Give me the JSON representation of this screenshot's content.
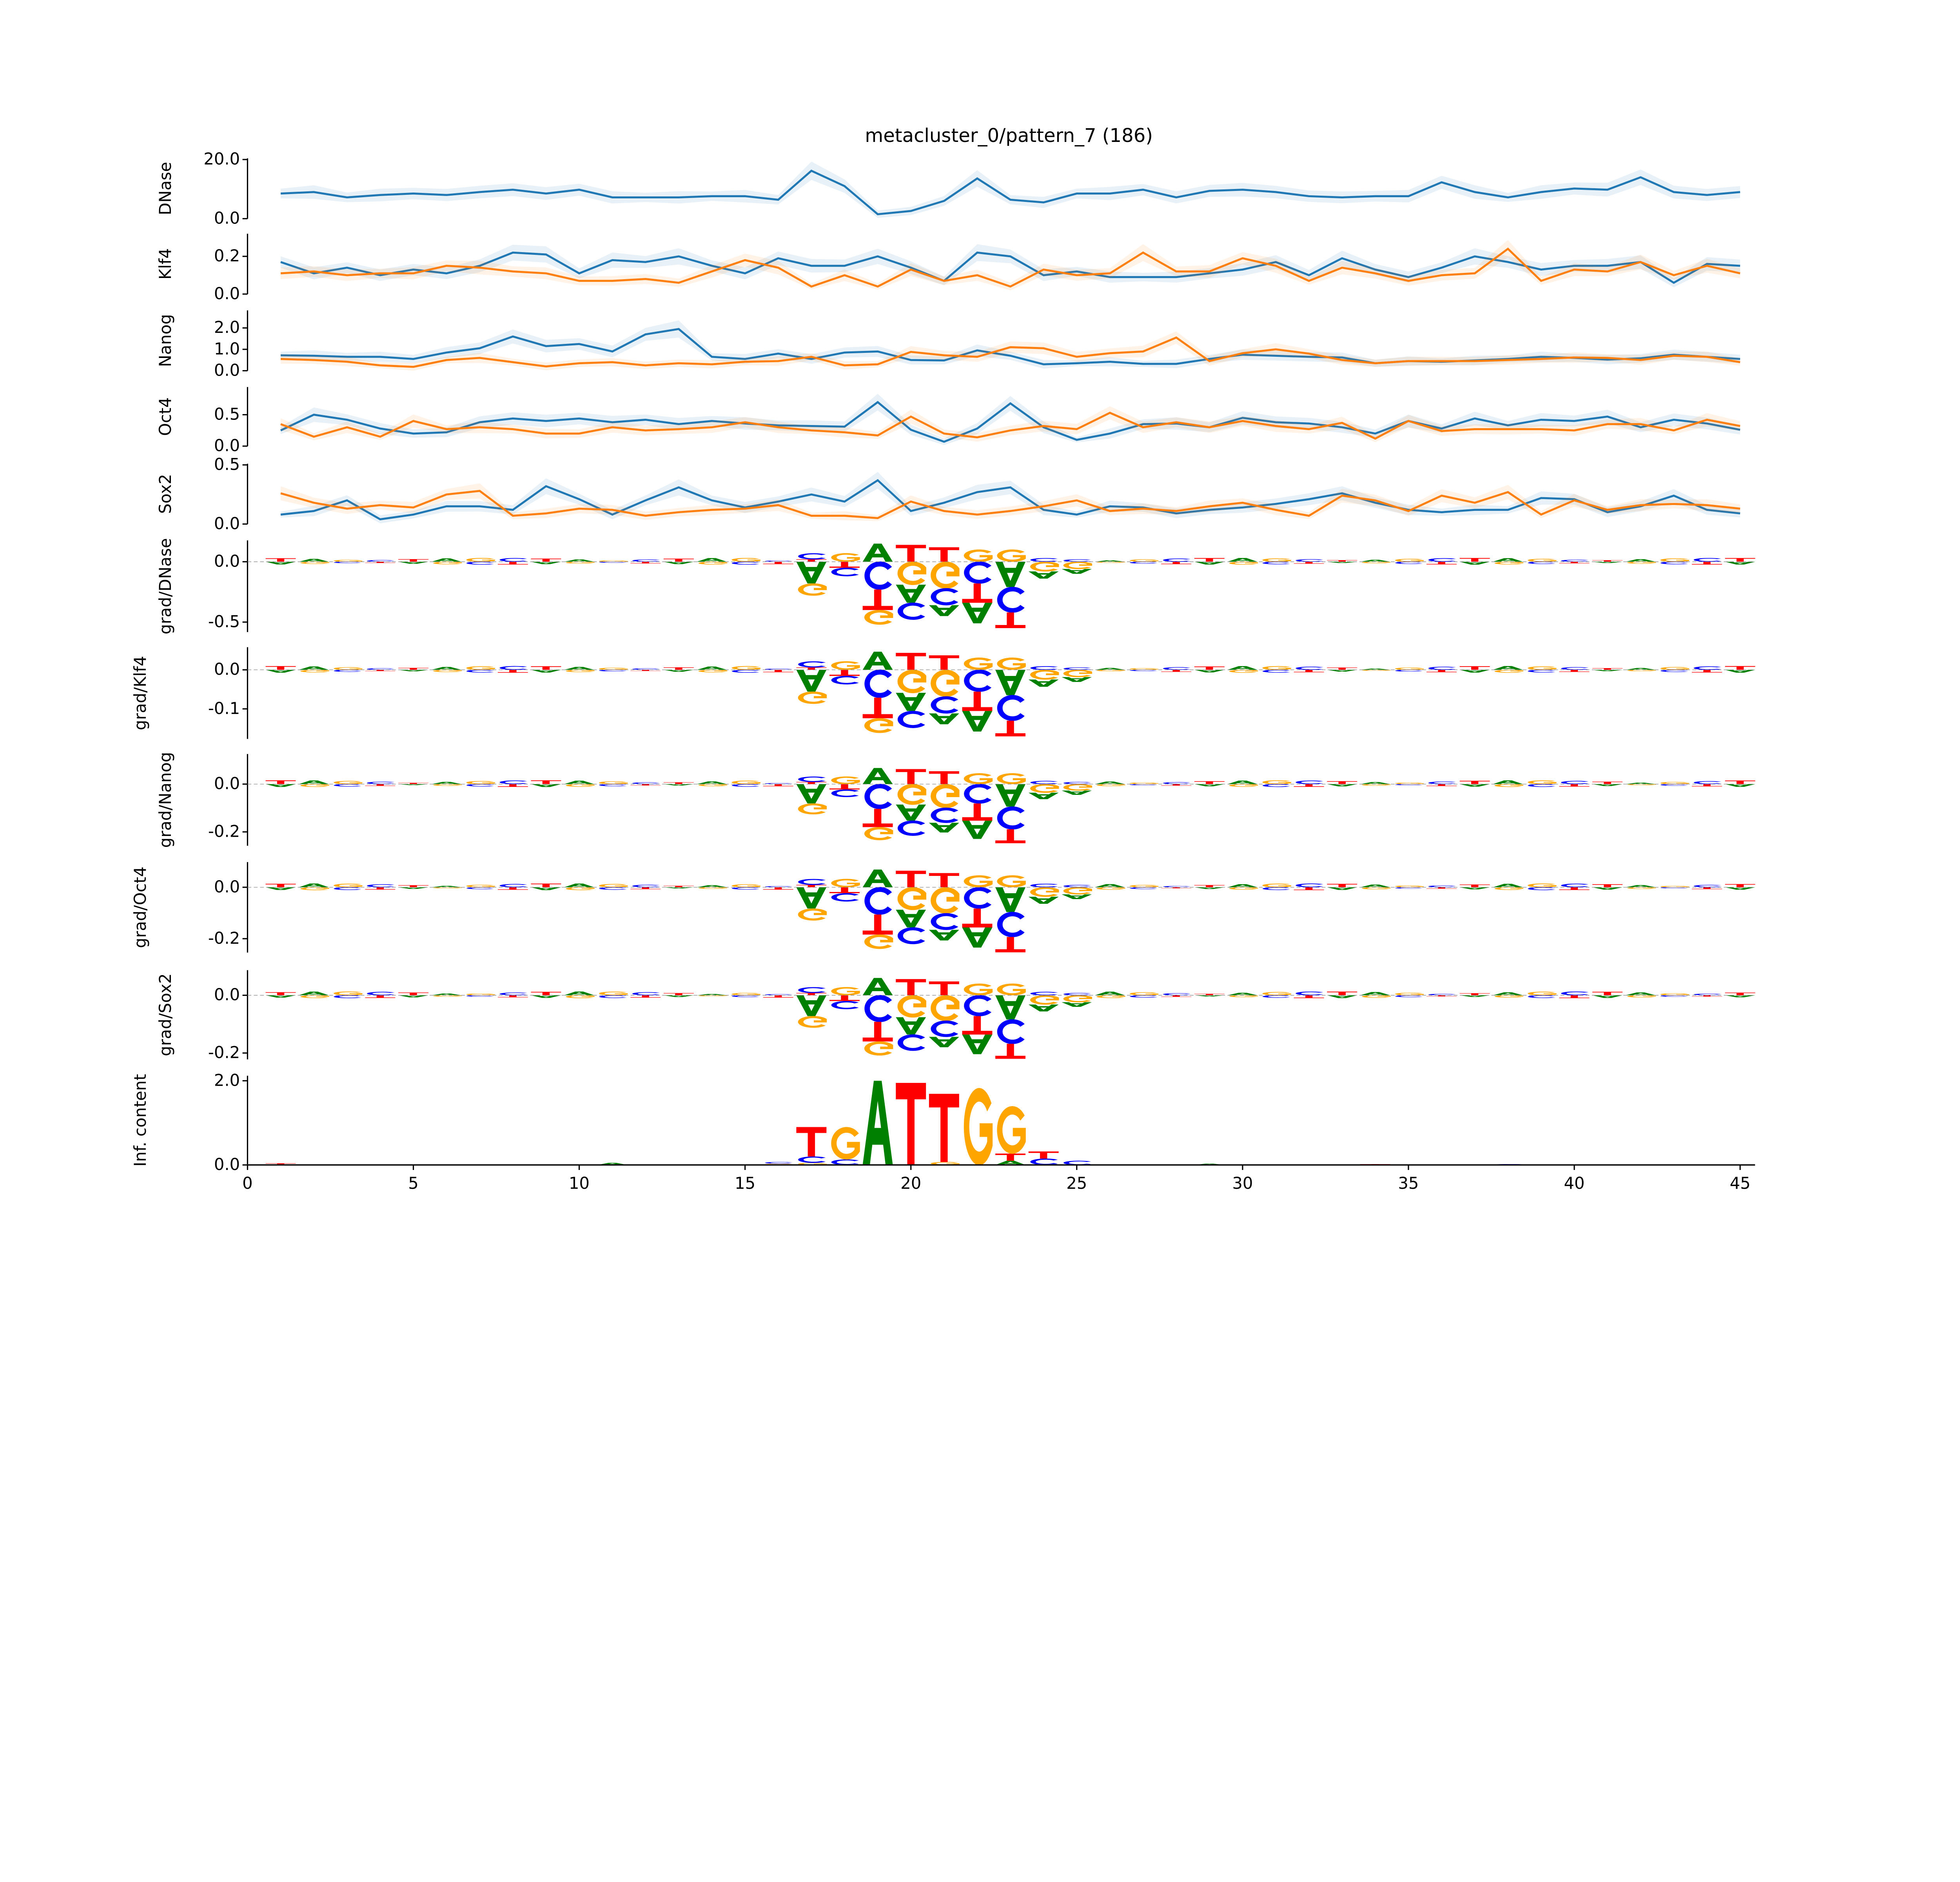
{
  "chart_data": {
    "type": "line",
    "title": "metacluster_0/pattern_7 (186)",
    "xlim": [
      0,
      45.45
    ],
    "xticks": [
      0,
      5,
      10,
      15,
      20,
      25,
      30,
      35,
      40,
      45
    ],
    "xtick_labels": [
      "0",
      "5",
      "10",
      "15",
      "20",
      "25",
      "30",
      "35",
      "40",
      "45"
    ],
    "letter_colors": {
      "A": "#008000",
      "C": "#0000ff",
      "G": "#ffa500",
      "T": "#ff0000"
    },
    "series_colors": [
      "#1f77b4",
      "#ff7f0e"
    ],
    "motif_stacks": [
      {
        "x": 16,
        "pos": [
          [
            "C",
            0.01
          ]
        ],
        "neg": [
          [
            "T",
            -0.02
          ]
        ]
      },
      {
        "x": 17,
        "pos": [
          [
            "T",
            0.02
          ],
          [
            "C",
            0.05
          ]
        ],
        "neg": [
          [
            "A",
            -0.18
          ],
          [
            "G",
            -0.1
          ]
        ]
      },
      {
        "x": 18,
        "pos": [
          [
            "G",
            0.07
          ]
        ],
        "neg": [
          [
            "T",
            -0.05
          ],
          [
            "C",
            -0.07
          ]
        ]
      },
      {
        "x": 19,
        "pos": [
          [
            "A",
            0.15
          ]
        ],
        "neg": [
          [
            "C",
            -0.23
          ],
          [
            "T",
            -0.17
          ],
          [
            "G",
            -0.12
          ]
        ]
      },
      {
        "x": 20,
        "pos": [
          [
            "T",
            0.14
          ]
        ],
        "neg": [
          [
            "G",
            -0.19
          ],
          [
            "A",
            -0.15
          ],
          [
            "C",
            -0.14
          ]
        ]
      },
      {
        "x": 21,
        "pos": [
          [
            "T",
            0.12
          ]
        ],
        "neg": [
          [
            "G",
            -0.22
          ],
          [
            "C",
            -0.14
          ],
          [
            "A",
            -0.09
          ]
        ]
      },
      {
        "x": 22,
        "pos": [
          [
            "G",
            0.1
          ]
        ],
        "neg": [
          [
            "C",
            -0.18
          ],
          [
            "T",
            -0.16
          ],
          [
            "A",
            -0.17
          ]
        ]
      },
      {
        "x": 23,
        "pos": [
          [
            "G",
            0.1
          ]
        ],
        "neg": [
          [
            "A",
            -0.21
          ],
          [
            "C",
            -0.21
          ],
          [
            "T",
            -0.13
          ]
        ]
      },
      {
        "x": 24,
        "pos": [
          [
            "C",
            0.03
          ]
        ],
        "neg": [
          [
            "G",
            -0.08
          ],
          [
            "A",
            -0.06
          ]
        ]
      },
      {
        "x": 25,
        "pos": [
          [
            "C",
            0.02
          ]
        ],
        "neg": [
          [
            "G",
            -0.06
          ],
          [
            "A",
            -0.04
          ]
        ]
      }
    ],
    "panels": [
      {
        "ylabel": "DNase",
        "kind": "line",
        "ylim": [
          0,
          20.4
        ],
        "yticks": [
          0,
          20
        ],
        "ytick_labels": [
          "0.0",
          "20.0"
        ],
        "series": [
          {
            "values": [
              8.5,
              9,
              7.2,
              8,
              8.5,
              8,
              9,
              9.8,
              8.5,
              9.8,
              7.2,
              7.2,
              7.2,
              7.6,
              7.6,
              6.4,
              16.2,
              11,
              1.5,
              2.6,
              6,
              13.6,
              6.4,
              5.5,
              8.5,
              8.5,
              9.8,
              7.2,
              9.4,
              9.8,
              9,
              7.6,
              7.2,
              7.6,
              7.6,
              12.3,
              9,
              7.2,
              9,
              10.2,
              9.8,
              14,
              9,
              8,
              9
            ]
          }
        ]
      },
      {
        "ylabel": "Klf4",
        "kind": "line",
        "ylim": [
          0,
          0.32
        ],
        "yticks": [
          0,
          0.2
        ],
        "ytick_labels": [
          "0.0",
          "0.2"
        ],
        "series": [
          {
            "values": [
              0.17,
              0.11,
              0.14,
              0.1,
              0.13,
              0.11,
              0.15,
              0.22,
              0.21,
              0.11,
              0.18,
              0.17,
              0.2,
              0.15,
              0.11,
              0.19,
              0.15,
              0.15,
              0.2,
              0.14,
              0.07,
              0.22,
              0.2,
              0.1,
              0.12,
              0.09,
              0.09,
              0.09,
              0.11,
              0.13,
              0.17,
              0.1,
              0.19,
              0.13,
              0.09,
              0.14,
              0.2,
              0.17,
              0.13,
              0.15,
              0.15,
              0.17,
              0.06,
              0.16,
              0.15
            ]
          },
          {
            "values": [
              0.11,
              0.12,
              0.1,
              0.11,
              0.11,
              0.15,
              0.14,
              0.12,
              0.11,
              0.07,
              0.07,
              0.08,
              0.06,
              0.12,
              0.18,
              0.14,
              0.04,
              0.1,
              0.04,
              0.13,
              0.07,
              0.1,
              0.04,
              0.13,
              0.1,
              0.11,
              0.22,
              0.12,
              0.12,
              0.19,
              0.15,
              0.07,
              0.14,
              0.11,
              0.07,
              0.1,
              0.11,
              0.24,
              0.07,
              0.13,
              0.12,
              0.17,
              0.1,
              0.15,
              0.11
            ]
          }
        ]
      },
      {
        "ylabel": "Nanog",
        "kind": "line",
        "ylim": [
          0,
          2.82
        ],
        "yticks": [
          0,
          1,
          2
        ],
        "ytick_labels": [
          "0.0",
          "1.0",
          "2.0"
        ],
        "series": [
          {
            "values": [
              0.72,
              0.7,
              0.65,
              0.65,
              0.55,
              0.85,
              1.05,
              1.6,
              1.15,
              1.25,
              0.9,
              1.7,
              1.95,
              0.65,
              0.55,
              0.8,
              0.55,
              0.85,
              0.9,
              0.5,
              0.48,
              0.95,
              0.7,
              0.3,
              0.35,
              0.42,
              0.32,
              0.32,
              0.55,
              0.75,
              0.7,
              0.65,
              0.62,
              0.35,
              0.45,
              0.42,
              0.48,
              0.55,
              0.65,
              0.6,
              0.52,
              0.58,
              0.75,
              0.65,
              0.55
            ]
          },
          {
            "values": [
              0.55,
              0.5,
              0.42,
              0.25,
              0.18,
              0.5,
              0.6,
              0.4,
              0.2,
              0.35,
              0.4,
              0.25,
              0.35,
              0.3,
              0.42,
              0.45,
              0.65,
              0.25,
              0.3,
              0.88,
              0.72,
              0.65,
              1.1,
              1.05,
              0.65,
              0.82,
              0.9,
              1.55,
              0.45,
              0.82,
              1.0,
              0.8,
              0.5,
              0.35,
              0.45,
              0.45,
              0.45,
              0.5,
              0.55,
              0.62,
              0.6,
              0.5,
              0.7,
              0.65,
              0.4
            ]
          }
        ]
      },
      {
        "ylabel": "Oct4",
        "kind": "line",
        "ylim": [
          0,
          0.94
        ],
        "yticks": [
          0,
          0.5
        ],
        "ytick_labels": [
          "0.0",
          "0.5"
        ],
        "series": [
          {
            "values": [
              0.25,
              0.5,
              0.42,
              0.28,
              0.2,
              0.22,
              0.38,
              0.44,
              0.4,
              0.44,
              0.38,
              0.42,
              0.35,
              0.4,
              0.36,
              0.33,
              0.32,
              0.31,
              0.7,
              0.26,
              0.07,
              0.28,
              0.68,
              0.3,
              0.1,
              0.2,
              0.35,
              0.36,
              0.3,
              0.45,
              0.38,
              0.36,
              0.3,
              0.2,
              0.4,
              0.28,
              0.44,
              0.33,
              0.42,
              0.4,
              0.47,
              0.3,
              0.42,
              0.36,
              0.26
            ]
          },
          {
            "values": [
              0.35,
              0.15,
              0.3,
              0.15,
              0.4,
              0.27,
              0.3,
              0.27,
              0.2,
              0.2,
              0.3,
              0.25,
              0.27,
              0.3,
              0.38,
              0.3,
              0.25,
              0.22,
              0.17,
              0.47,
              0.2,
              0.14,
              0.25,
              0.32,
              0.27,
              0.53,
              0.3,
              0.38,
              0.3,
              0.4,
              0.32,
              0.27,
              0.37,
              0.12,
              0.4,
              0.24,
              0.27,
              0.27,
              0.27,
              0.25,
              0.35,
              0.35,
              0.25,
              0.42,
              0.32
            ]
          }
        ]
      },
      {
        "ylabel": "Sox2",
        "kind": "line",
        "ylim": [
          0,
          0.51
        ],
        "yticks": [
          0,
          0.5
        ],
        "ytick_labels": [
          "0.0",
          "0.5"
        ],
        "series": [
          {
            "values": [
              0.08,
              0.11,
              0.2,
              0.04,
              0.08,
              0.15,
              0.15,
              0.12,
              0.32,
              0.21,
              0.08,
              0.2,
              0.31,
              0.2,
              0.14,
              0.19,
              0.25,
              0.19,
              0.37,
              0.11,
              0.18,
              0.27,
              0.31,
              0.12,
              0.08,
              0.15,
              0.14,
              0.09,
              0.12,
              0.14,
              0.17,
              0.21,
              0.26,
              0.18,
              0.12,
              0.1,
              0.12,
              0.12,
              0.22,
              0.21,
              0.1,
              0.15,
              0.24,
              0.12,
              0.09
            ]
          },
          {
            "values": [
              0.26,
              0.18,
              0.13,
              0.16,
              0.14,
              0.25,
              0.28,
              0.07,
              0.09,
              0.13,
              0.12,
              0.07,
              0.1,
              0.12,
              0.13,
              0.16,
              0.07,
              0.07,
              0.05,
              0.19,
              0.11,
              0.08,
              0.11,
              0.15,
              0.2,
              0.11,
              0.13,
              0.11,
              0.15,
              0.18,
              0.12,
              0.07,
              0.24,
              0.2,
              0.11,
              0.24,
              0.18,
              0.27,
              0.08,
              0.2,
              0.12,
              0.16,
              0.17,
              0.16,
              0.13
            ]
          }
        ]
      },
      {
        "ylabel": "grad/DNase",
        "kind": "logo",
        "ylim": [
          -0.583,
          0.177
        ],
        "yticks": [
          -0.5,
          0
        ],
        "ytick_labels": [
          "-0.5",
          "0.0"
        ],
        "scale": 1.0
      },
      {
        "ylabel": "grad/Klf4",
        "kind": "logo",
        "ylim": [
          -0.177,
          0.058
        ],
        "yticks": [
          -0.1,
          0
        ],
        "ytick_labels": [
          "-0.1",
          "0.0"
        ],
        "scale": 0.31
      },
      {
        "ylabel": "grad/Nanog",
        "kind": "logo",
        "ylim": [
          -0.258,
          0.126
        ],
        "yticks": [
          -0.2,
          0
        ],
        "ytick_labels": [
          "-0.2",
          "0.0"
        ],
        "scale": 0.45
      },
      {
        "ylabel": "grad/Oct4",
        "kind": "logo",
        "ylim": [
          -0.254,
          0.098
        ],
        "yticks": [
          -0.2,
          0
        ],
        "ytick_labels": [
          "-0.2",
          "0.0"
        ],
        "scale": 0.46
      },
      {
        "ylabel": "grad/Sox2",
        "kind": "logo",
        "ylim": [
          -0.222,
          0.087
        ],
        "yticks": [
          -0.2,
          0
        ],
        "ytick_labels": [
          "-0.2",
          "0.0"
        ],
        "scale": 0.4
      },
      {
        "ylabel": "Inf. content",
        "kind": "ic",
        "ylim": [
          0,
          2.12
        ],
        "yticks": [
          0,
          2
        ],
        "ytick_labels": [
          "0.0",
          "2.0"
        ],
        "stacks": [
          {
            "x": 1,
            "pos": [
              [
                "T",
                0.04
              ]
            ]
          },
          {
            "x": 11,
            "pos": [
              [
                "A",
                0.05
              ]
            ]
          },
          {
            "x": 16,
            "pos": [
              [
                "G",
                0.03
              ],
              [
                "C",
                0.04
              ]
            ]
          },
          {
            "x": 17,
            "pos": [
              [
                "G",
                0.05
              ],
              [
                "C",
                0.15
              ],
              [
                "T",
                0.7
              ]
            ]
          },
          {
            "x": 18,
            "pos": [
              [
                "C",
                0.13
              ],
              [
                "G",
                0.76
              ]
            ]
          },
          {
            "x": 19,
            "pos": [
              [
                "A",
                2.0
              ]
            ]
          },
          {
            "x": 20,
            "pos": [
              [
                "T",
                1.95
              ]
            ]
          },
          {
            "x": 21,
            "pos": [
              [
                "G",
                0.07
              ],
              [
                "T",
                1.62
              ]
            ]
          },
          {
            "x": 22,
            "pos": [
              [
                "G",
                1.8
              ]
            ]
          },
          {
            "x": 23,
            "pos": [
              [
                "A",
                0.1
              ],
              [
                "T",
                0.17
              ],
              [
                "G",
                1.11
              ]
            ]
          },
          {
            "x": 24,
            "pos": [
              [
                "C",
                0.15
              ],
              [
                "T",
                0.17
              ]
            ]
          },
          {
            "x": 25,
            "pos": [
              [
                "C",
                0.1
              ]
            ]
          },
          {
            "x": 29,
            "pos": [
              [
                "A",
                0.03
              ]
            ]
          },
          {
            "x": 34,
            "pos": [
              [
                "T",
                0.02
              ]
            ]
          },
          {
            "x": 38,
            "pos": [
              [
                "C",
                0.02
              ]
            ]
          }
        ]
      }
    ]
  }
}
